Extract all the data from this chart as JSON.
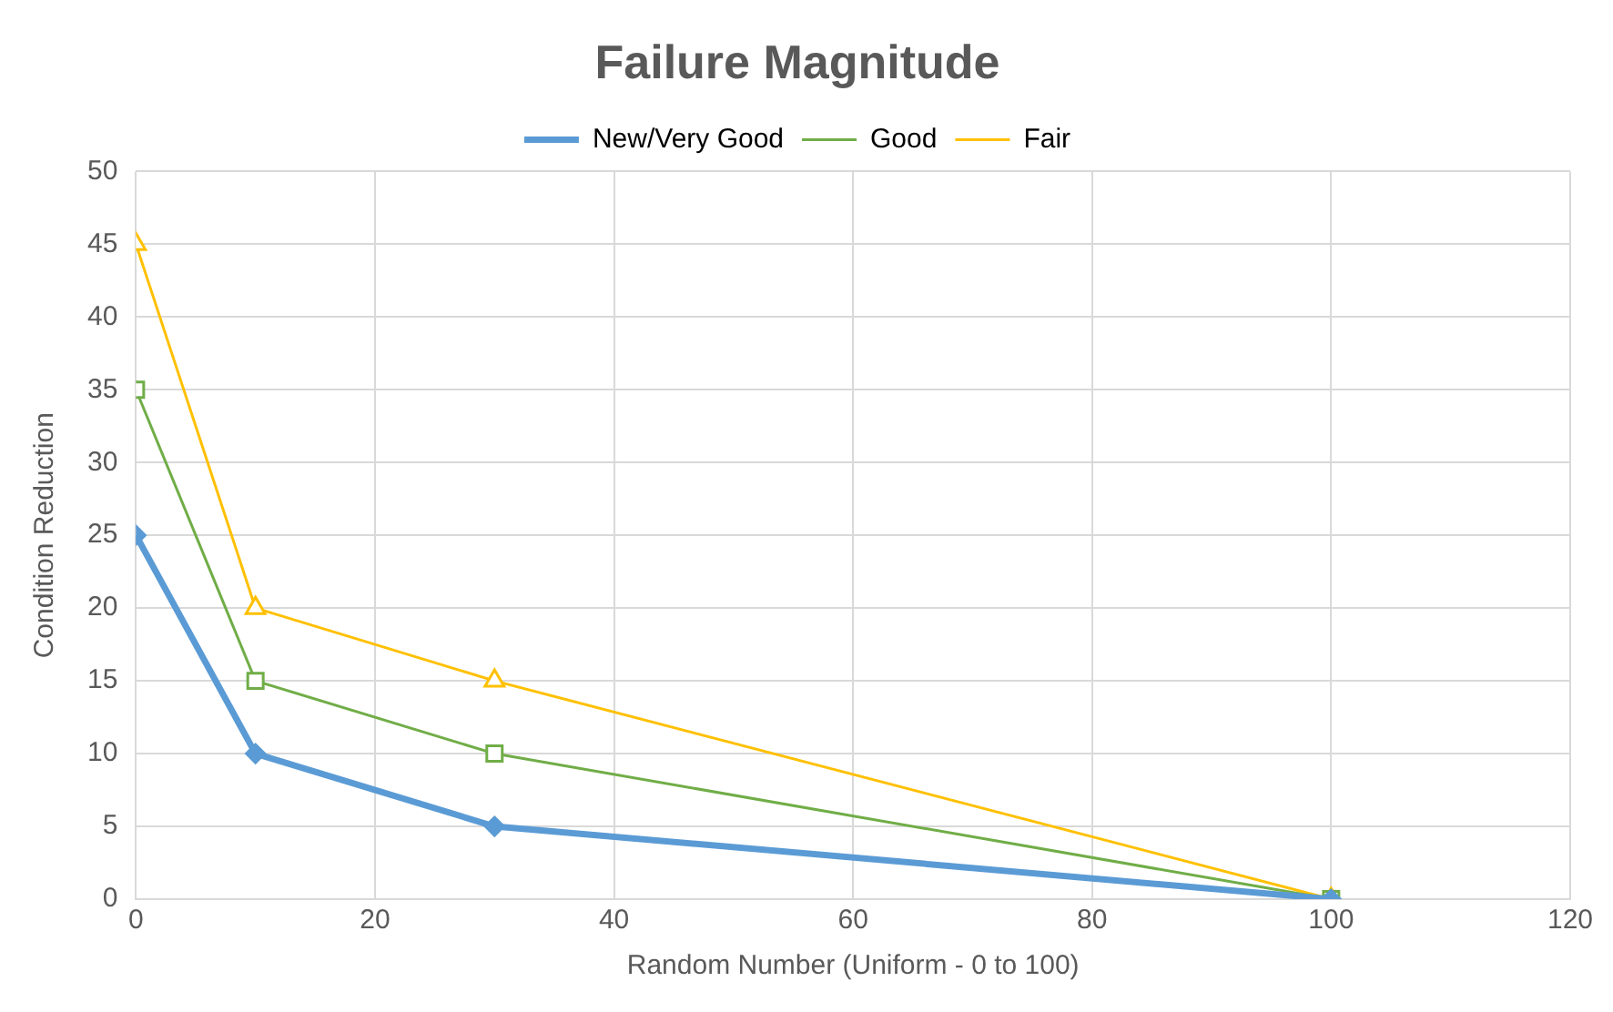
{
  "chart_data": {
    "type": "line",
    "title": "Failure Magnitude",
    "xlabel": "Random Number (Uniform - 0 to 100)",
    "ylabel": "Condition Reduction",
    "x": [
      0,
      10,
      30,
      100
    ],
    "series": [
      {
        "name": "New/Very Good",
        "color": "#5b9bd5",
        "values": [
          25,
          10,
          5,
          0
        ],
        "marker": "diamond"
      },
      {
        "name": "Good",
        "color": "#70ad47",
        "values": [
          35,
          15,
          10,
          0
        ],
        "marker": "square"
      },
      {
        "name": "Fair",
        "color": "#ffc000",
        "values": [
          45,
          20,
          15,
          0
        ],
        "marker": "triangle"
      }
    ],
    "xlim": [
      0,
      120
    ],
    "xticks": [
      0,
      20,
      40,
      60,
      80,
      100,
      120
    ],
    "ylim": [
      0,
      50
    ],
    "yticks": [
      0,
      5,
      10,
      15,
      20,
      25,
      30,
      35,
      40,
      45,
      50
    ],
    "grid": true,
    "legend": "top",
    "line_style": "solid"
  }
}
